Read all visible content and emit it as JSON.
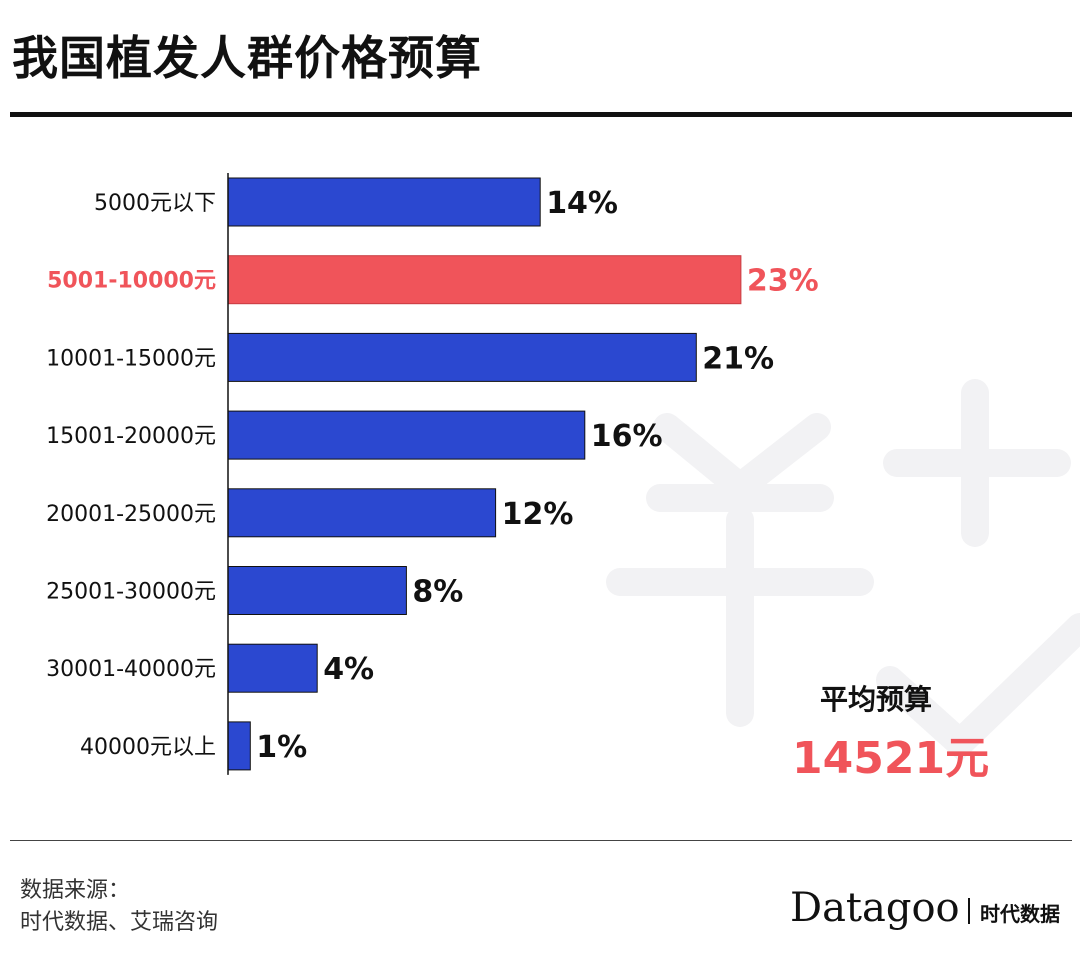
{
  "title": "我国植发人群价格预算",
  "chart_data": {
    "type": "bar",
    "orientation": "horizontal",
    "title": "我国植发人群价格预算",
    "categories": [
      "5000元以下",
      "5001-10000元",
      "10001-15000元",
      "15001-20000元",
      "20001-25000元",
      "25001-30000元",
      "30001-40000元",
      "40000元以上"
    ],
    "values": [
      14,
      23,
      21,
      16,
      12,
      8,
      4,
      1
    ],
    "value_labels": [
      "14%",
      "23%",
      "21%",
      "16%",
      "12%",
      "8%",
      "4%",
      "1%"
    ],
    "highlight_index": 1,
    "xlim": [
      0,
      23
    ],
    "grid": false,
    "colors": {
      "bar": "#2b48d0",
      "highlight": "#f0545a",
      "text": "#111111"
    }
  },
  "average": {
    "label": "平均预算",
    "value": "14521元"
  },
  "source": {
    "line1": "数据来源：",
    "line2": "时代数据、艾瑞咨询"
  },
  "logo": {
    "name": "Datagoo",
    "cn": "时代数据"
  }
}
